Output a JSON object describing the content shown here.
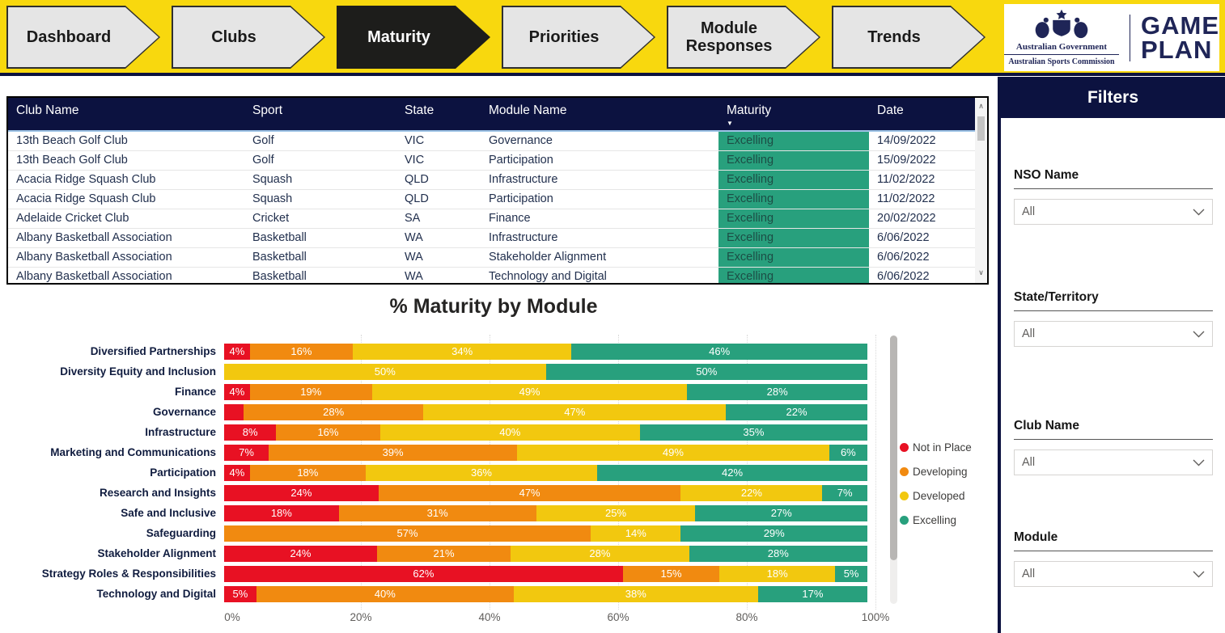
{
  "nav": {
    "items": [
      {
        "label": "Dashboard",
        "active": false
      },
      {
        "label": "Clubs",
        "active": false
      },
      {
        "label": "Maturity",
        "active": true
      },
      {
        "label": "Priorities",
        "active": false
      },
      {
        "label": "Module Responses",
        "active": false
      },
      {
        "label": "Trends",
        "active": false
      }
    ]
  },
  "logo": {
    "gov_line1": "Australian Government",
    "gov_line2": "Australian Sports Commission",
    "brand_line1": "GAME",
    "brand_line2": "PLAN"
  },
  "table": {
    "columns": [
      "Club Name",
      "Sport",
      "State",
      "Module Name",
      "Maturity",
      "Date"
    ],
    "sorted_column": "Maturity",
    "sort_direction": "descending",
    "rows": [
      [
        "13th Beach Golf Club",
        "Golf",
        "VIC",
        "Governance",
        "Excelling",
        "14/09/2022"
      ],
      [
        "13th Beach Golf Club",
        "Golf",
        "VIC",
        "Participation",
        "Excelling",
        "15/09/2022"
      ],
      [
        "Acacia Ridge Squash Club",
        "Squash",
        "QLD",
        "Infrastructure",
        "Excelling",
        "11/02/2022"
      ],
      [
        "Acacia Ridge Squash Club",
        "Squash",
        "QLD",
        "Participation",
        "Excelling",
        "11/02/2022"
      ],
      [
        "Adelaide Cricket Club",
        "Cricket",
        "SA",
        "Finance",
        "Excelling",
        "20/02/2022"
      ],
      [
        "Albany Basketball Association",
        "Basketball",
        "WA",
        "Infrastructure",
        "Excelling",
        "6/06/2022"
      ],
      [
        "Albany Basketball Association",
        "Basketball",
        "WA",
        "Stakeholder Alignment",
        "Excelling",
        "6/06/2022"
      ],
      [
        "Albany Basketball Association",
        "Basketball",
        "WA",
        "Technology and Digital",
        "Excelling",
        "6/06/2022"
      ]
    ]
  },
  "chart_data": {
    "type": "bar",
    "orientation": "horizontal",
    "stacked": true,
    "title": "% Maturity by Module",
    "categories": [
      "Diversified Partnerships",
      "Diversity Equity and Inclusion",
      "Finance",
      "Governance",
      "Infrastructure",
      "Marketing and Communications",
      "Participation",
      "Research and Insights",
      "Safe and Inclusive",
      "Safeguarding",
      "Stakeholder Alignment",
      "Strategy Roles & Responsibilities",
      "Technology and Digital"
    ],
    "series": [
      {
        "name": "Not in Place",
        "color": "#E81123",
        "values": [
          4,
          0,
          4,
          3,
          8,
          7,
          4,
          24,
          18,
          0,
          24,
          62,
          5
        ]
      },
      {
        "name": "Developing",
        "color": "#F18A10",
        "values": [
          16,
          0,
          19,
          28,
          16,
          39,
          18,
          47,
          31,
          57,
          21,
          15,
          40
        ]
      },
      {
        "name": "Developed",
        "color": "#F2C80F",
        "values": [
          34,
          50,
          49,
          47,
          40,
          49,
          36,
          22,
          25,
          14,
          28,
          18,
          38
        ]
      },
      {
        "name": "Excelling",
        "color": "#28A07D",
        "values": [
          46,
          50,
          28,
          22,
          35,
          6,
          42,
          7,
          27,
          29,
          28,
          5,
          17
        ]
      }
    ],
    "x_ticks": [
      "0%",
      "20%",
      "40%",
      "60%",
      "80%",
      "100%"
    ],
    "xlim": [
      0,
      100
    ],
    "legend_position": "right",
    "min_label_value": 4,
    "data_label_suffix": "%"
  },
  "filters": {
    "title": "Filters",
    "groups": [
      {
        "label": "NSO Name",
        "value": "All"
      },
      {
        "label": "State/Territory",
        "value": "All"
      },
      {
        "label": "Club Name",
        "value": "All"
      },
      {
        "label": "Module",
        "value": "All"
      }
    ]
  },
  "icons": {
    "sort_descending": "▼",
    "scroll_up": "∧",
    "scroll_down": "∨"
  },
  "colors": {
    "banner_yellow": "#F8D80E",
    "header_navy": "#0C1240",
    "logo_navy": "#1F2557",
    "maturity_cell_bg": "#28A07D",
    "maturity_cell_text": "#1C4D45"
  }
}
